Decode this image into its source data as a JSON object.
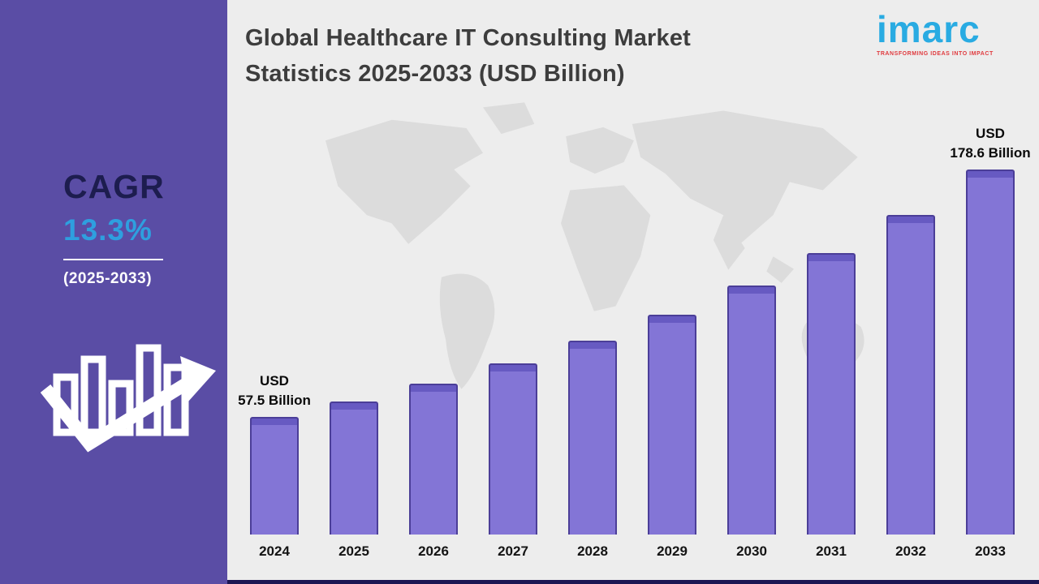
{
  "left_panel": {
    "cagr_label": "CAGR",
    "cagr_value": "13.3%",
    "period": "(2025-2033)"
  },
  "header": {
    "title_line1": "Global Healthcare IT Consulting Market",
    "title_line2": "Statistics 2025-2033 (USD Billion)"
  },
  "logo": {
    "text": "imarc",
    "tagline": "TRANSFORMING IDEAS INTO IMPACT"
  },
  "annotations": {
    "first": {
      "line1": "USD",
      "line2": "57.5 Billion"
    },
    "last": {
      "line1": "USD",
      "line2": "178.6 Billion"
    }
  },
  "chart_data": {
    "type": "bar",
    "title": "Global Healthcare IT Consulting Market Statistics 2025-2033 (USD Billion)",
    "categories": [
      "2024",
      "2025",
      "2026",
      "2027",
      "2028",
      "2029",
      "2030",
      "2031",
      "2032",
      "2033"
    ],
    "values": [
      57.5,
      65.2,
      73.8,
      83.6,
      94.8,
      107.4,
      121.7,
      137.8,
      156.2,
      178.6
    ],
    "xlabel": "",
    "ylabel": "",
    "ylim": [
      0,
      185
    ],
    "grid": false,
    "legend_position": "none",
    "bar_color": "#8375d6"
  },
  "colors": {
    "panel": "#5a4da5",
    "bg-gray": "#ededed",
    "map-gray": "#dcdcdc",
    "title-gray": "#3d3d3d",
    "accent-cyan": "#29abe2",
    "cagr-cyan": "#2e9fdf",
    "tagline-red": "#e03a3e",
    "bar-fill": "#8375d6",
    "bar-cap": "#675ac2",
    "bar-border": "#4b3e98",
    "strip-navy": "#1c1653"
  }
}
